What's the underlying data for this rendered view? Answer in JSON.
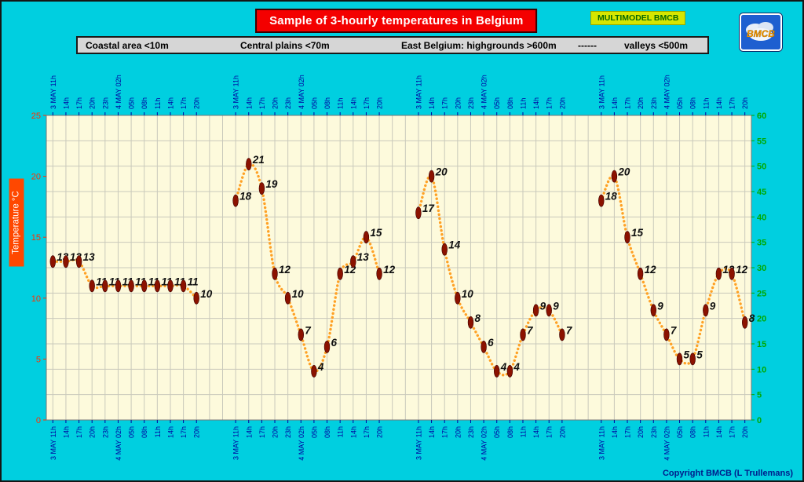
{
  "header": {
    "title": "Sample of 3-hourly temperatures in Belgium",
    "badge": "MULTIMODEL BMCB",
    "logo": "BMCB"
  },
  "legend": {
    "items": [
      "Coastal area <10m",
      "Central plains <70m",
      "East Belgium: highgrounds >600m",
      "------",
      "valleys <500m"
    ]
  },
  "footer": {
    "copyright": "Copyright BMCB (L Trullemans)"
  },
  "theme": {
    "background": "#00CFE0",
    "title_bg": "#F40000",
    "title_text": "#FFFFFF",
    "badge_bg": "#D6E600",
    "badge_text": "#0A6A00",
    "legend_bg": "#D6D6D6",
    "ylabel_bg": "#FF4800",
    "copyright_text": "#001C8B"
  },
  "chart_data": {
    "type": "line",
    "title": "Sample of 3-hourly temperatures in Belgium",
    "ylabel": "Temperature °C",
    "ylim_left": [
      0,
      25
    ],
    "ylim_right": [
      0,
      60
    ],
    "y_left_ticks": [
      0,
      5,
      10,
      15,
      20,
      25
    ],
    "y_right_ticks": [
      0,
      5,
      10,
      15,
      20,
      25,
      30,
      35,
      40,
      45,
      50,
      55,
      60
    ],
    "grid": true,
    "time_labels": [
      "3 MAY 11h",
      "14h",
      "17h",
      "20h",
      "23h",
      "4 MAY 02h",
      "05h",
      "08h",
      "11h",
      "14h",
      "17h",
      "20h"
    ],
    "series": [
      {
        "name": "Coastal area <10m",
        "values": [
          13,
          13,
          13,
          11,
          11,
          11,
          11,
          11,
          11,
          11,
          11,
          10
        ]
      },
      {
        "name": "Central plains <70m",
        "values": [
          18,
          21,
          19,
          12,
          10,
          7,
          4,
          6,
          12,
          13,
          15,
          12
        ]
      },
      {
        "name": "East Belgium highgrounds >600m",
        "values": [
          17,
          20,
          14,
          10,
          8,
          6,
          4,
          4,
          7,
          9,
          9,
          7
        ]
      },
      {
        "name": "valleys <500m",
        "values": [
          18,
          20,
          15,
          12,
          9,
          7,
          5,
          5,
          9,
          12,
          12,
          8
        ]
      }
    ],
    "colors": {
      "line": "#FFA125",
      "marker": "#8B1200",
      "marker_stroke": "#3d0000",
      "value_label": "#101010",
      "x_tick_label": "#0000A0",
      "y_left_tick_label": "#FF3000",
      "y_right_tick_label": "#00A800",
      "plot_bg": "#FDFADC",
      "grid": "#C9C9BB",
      "plot_border": "#777777"
    }
  }
}
